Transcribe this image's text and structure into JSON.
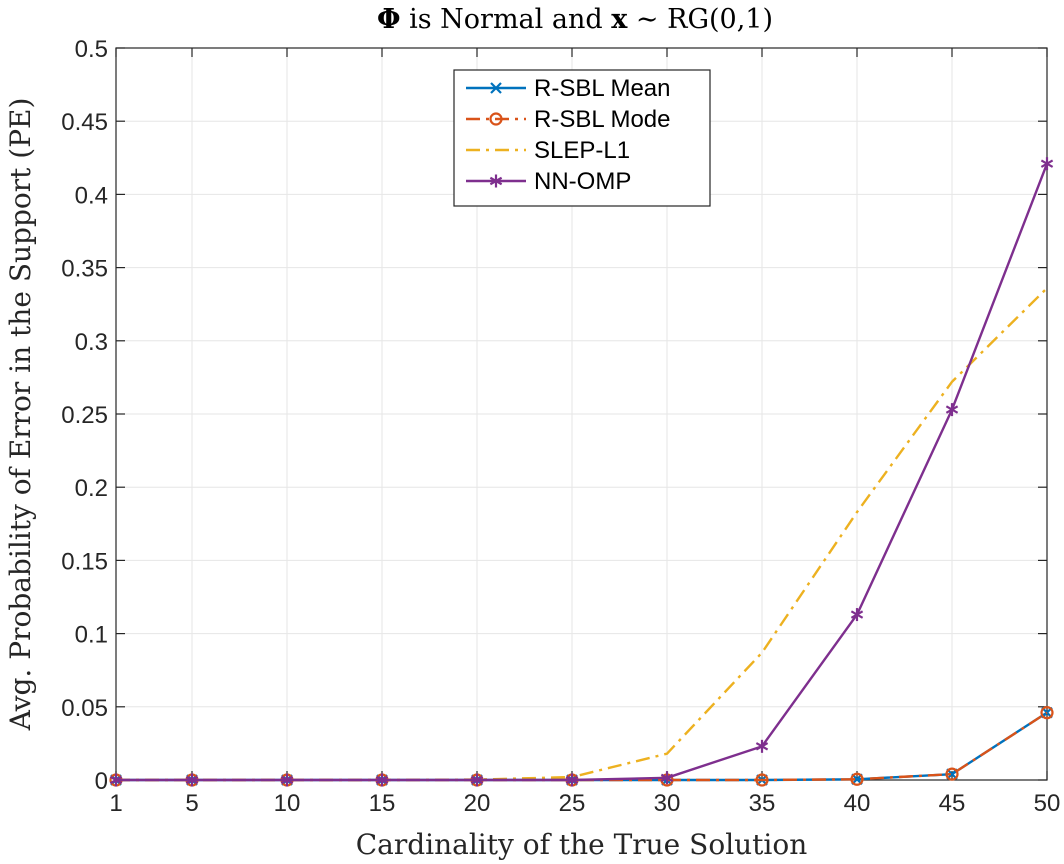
{
  "chart_data": {
    "type": "line",
    "title_parts": [
      "Φ",
      " is Normal and ",
      "x",
      " ∼ RG(0,1)"
    ],
    "xlabel": "Cardinality of the True Solution",
    "ylabel": "Avg. Probability of Error in the Support (PE)",
    "xlim": [
      1,
      50
    ],
    "ylim": [
      0,
      0.5
    ],
    "xticks": [
      1,
      5,
      10,
      15,
      20,
      25,
      30,
      35,
      40,
      45,
      50
    ],
    "yticks": [
      0,
      0.05,
      0.1,
      0.15,
      0.2,
      0.25,
      0.3,
      0.35,
      0.4,
      0.45,
      0.5
    ],
    "ytick_labels": [
      "0",
      "0.05",
      "0.1",
      "0.15",
      "0.2",
      "0.25",
      "0.3",
      "0.35",
      "0.4",
      "0.45",
      "0.5"
    ],
    "grid": true,
    "legend_position": "top-center",
    "x": [
      1,
      5,
      10,
      15,
      20,
      25,
      30,
      35,
      40,
      45,
      50
    ],
    "series": [
      {
        "name": "R-SBL Mean",
        "color": "#0072BD",
        "line_style": "solid",
        "marker": "x",
        "values": [
          0,
          0,
          0,
          0,
          0,
          0,
          0,
          0,
          0.0005,
          0.004,
          0.046
        ]
      },
      {
        "name": "R-SBL Mode",
        "color": "#D95319",
        "line_style": "dashdot",
        "marker": "o",
        "values": [
          0,
          0,
          0,
          0,
          0,
          0,
          0,
          0,
          0.0005,
          0.004,
          0.046
        ]
      },
      {
        "name": "SLEP-L1",
        "color": "#EDB120",
        "line_style": "dashdot",
        "marker": "none",
        "values": [
          0,
          0,
          0,
          0,
          0.0003,
          0.002,
          0.018,
          0.087,
          0.183,
          0.272,
          0.336
        ]
      },
      {
        "name": "NN-OMP",
        "color": "#7E2F8E",
        "line_style": "solid",
        "marker": "asterisk",
        "values": [
          0,
          0,
          0,
          0,
          0,
          0,
          0.0015,
          0.023,
          0.113,
          0.253,
          0.421
        ]
      }
    ]
  }
}
